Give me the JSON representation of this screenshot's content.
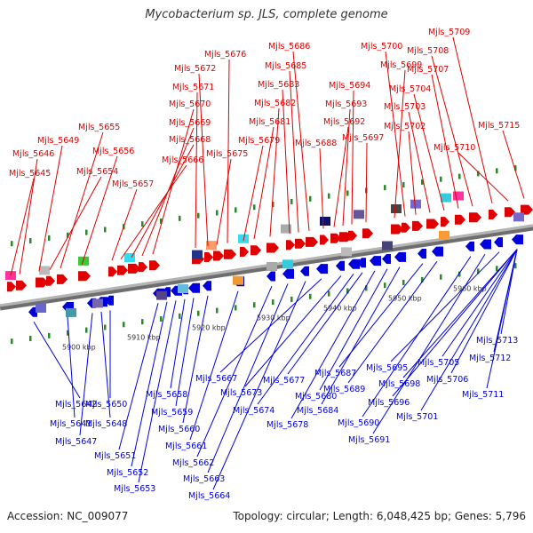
{
  "title": "Mycobacterium sp. JLS, complete genome",
  "footer": {
    "accession": "Accession: NC_009077",
    "stats": "Topology: circular; Length: 6,048,425 bp; Genes: 5,796"
  },
  "colors": {
    "forward": "#e00000",
    "reverse": "#0000dd",
    "backbone": "#999999",
    "tick": "#2a8a2a"
  },
  "scale_ticks": [
    "5900 kbp",
    "5910 kbp",
    "5920 kbp",
    "5930 kbp",
    "5940 kbp",
    "5950 kbp",
    "5960 kbp"
  ],
  "forward_genes": [
    "Mjls_5645",
    "Mjls_5646",
    "Mjls_5649",
    "Mjls_5654",
    "Mjls_5655",
    "Mjls_5656",
    "Mjls_5657",
    "Mjls_5666",
    "Mjls_5668",
    "Mjls_5669",
    "Mjls_5670",
    "Mjls_5671",
    "Mjls_5672",
    "Mjls_5675",
    "Mjls_5676",
    "Mjls_5679",
    "Mjls_5681",
    "Mjls_5682",
    "Mjls_5683",
    "Mjls_5685",
    "Mjls_5686",
    "Mjls_5688",
    "Mjls_5692",
    "Mjls_5693",
    "Mjls_5694",
    "Mjls_5697",
    "Mjls_5699",
    "Mjls_5700",
    "Mjls_5702",
    "Mjls_5703",
    "Mjls_5704",
    "Mjls_5707",
    "Mjls_5708",
    "Mjls_5709",
    "Mjls_5710",
    "Mjls_5715"
  ],
  "reverse_genes": [
    "Mjls_5642",
    "Mjls_5641",
    "Mjls_5647",
    "Mjls_5648",
    "Mjls_5650",
    "Mjls_5651",
    "Mjls_5652",
    "Mjls_5653",
    "Mjls_5658",
    "Mjls_5659",
    "Mjls_5660",
    "Mjls_5661",
    "Mjls_5662",
    "Mjls_5663",
    "Mjls_5664",
    "Mjls_5667",
    "Mjls_5673",
    "Mjls_5674",
    "Mjls_5677",
    "Mjls_5678",
    "Mjls_5680",
    "Mjls_5684",
    "Mjls_5687",
    "Mjls_5689",
    "Mjls_5690",
    "Mjls_5691",
    "Mjls_5695",
    "Mjls_5696",
    "Mjls_5698",
    "Mjls_5701",
    "Mjls_5705",
    "Mjls_5706",
    "Mjls_5711",
    "Mjls_5712",
    "Mjls_5713"
  ]
}
